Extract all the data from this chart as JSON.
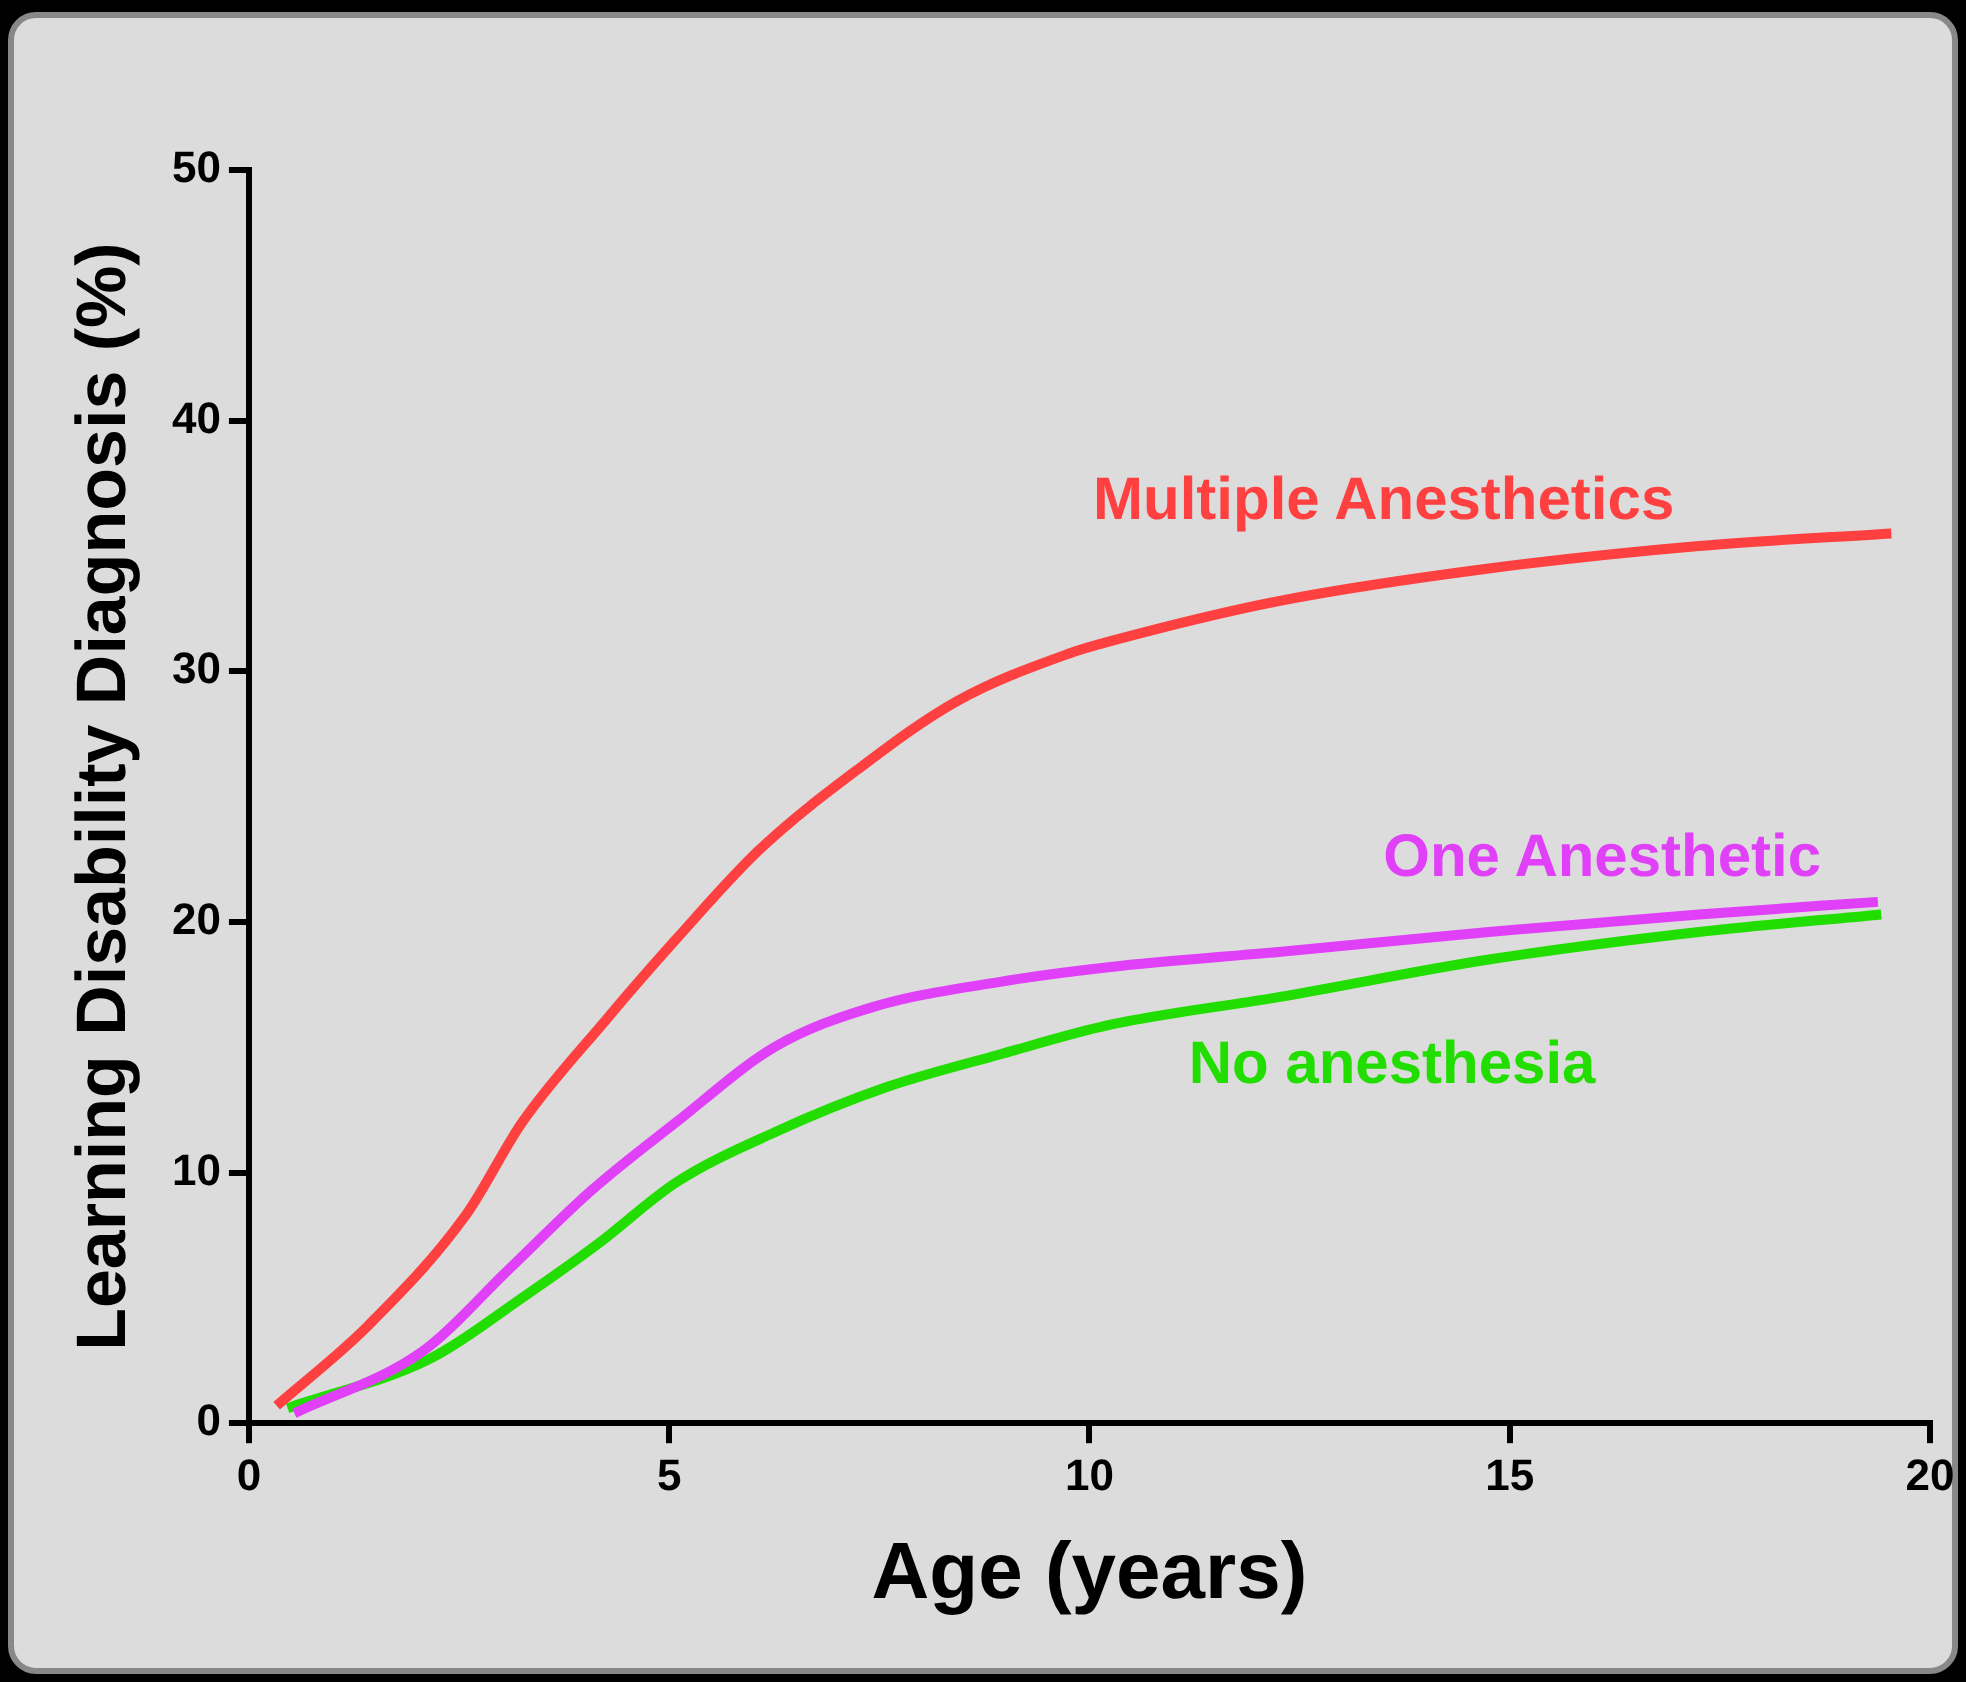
{
  "chart_data": {
    "type": "line",
    "xlabel": "Age (years)",
    "ylabel": "Learning Disability Diagnosis (%)",
    "xlim": [
      0,
      20
    ],
    "xticks": [
      0,
      5,
      10,
      15,
      20
    ],
    "ylim": [
      0,
      50
    ],
    "yticks": [
      0,
      10,
      20,
      30,
      40,
      50
    ],
    "grid": false,
    "legend": false,
    "marker": "none",
    "line_style": "solid",
    "series": [
      {
        "name": "Multiple Anesthetics",
        "color": "#ff4040",
        "x": [
          0.33,
          1.42,
          2.58,
          3.25,
          4.25,
          5.08,
          6.08,
          7.25,
          8.42,
          9.75,
          10.25,
          12.25,
          14.75,
          17.25,
          19.54
        ],
        "values": [
          0.7,
          3.9,
          8.3,
          12.0,
          16.1,
          19.3,
          22.9,
          26.1,
          28.8,
          30.7,
          31.2,
          32.8,
          34.1,
          35.0,
          35.5
        ]
      },
      {
        "name": "One Anesthetic",
        "color": "#e040f8",
        "x": [
          0.54,
          2.08,
          3.08,
          4.08,
          5.08,
          6.25,
          7.42,
          8.92,
          10.25,
          12.25,
          14.75,
          17.25,
          19.38
        ],
        "values": [
          0.4,
          2.9,
          6.1,
          9.3,
          12.0,
          15.0,
          16.6,
          17.6,
          18.2,
          18.8,
          19.6,
          20.3,
          20.8
        ]
      },
      {
        "name": "No anesthesia",
        "color": "#22dd00",
        "x": [
          0.46,
          2.17,
          3.25,
          4.17,
          5.08,
          6.25,
          7.58,
          8.92,
          10.25,
          12.25,
          14.75,
          17.25,
          19.42
        ],
        "values": [
          0.6,
          2.6,
          5.0,
          7.2,
          9.6,
          11.6,
          13.4,
          14.7,
          15.9,
          17.0,
          18.5,
          19.6,
          20.3
        ]
      }
    ]
  }
}
